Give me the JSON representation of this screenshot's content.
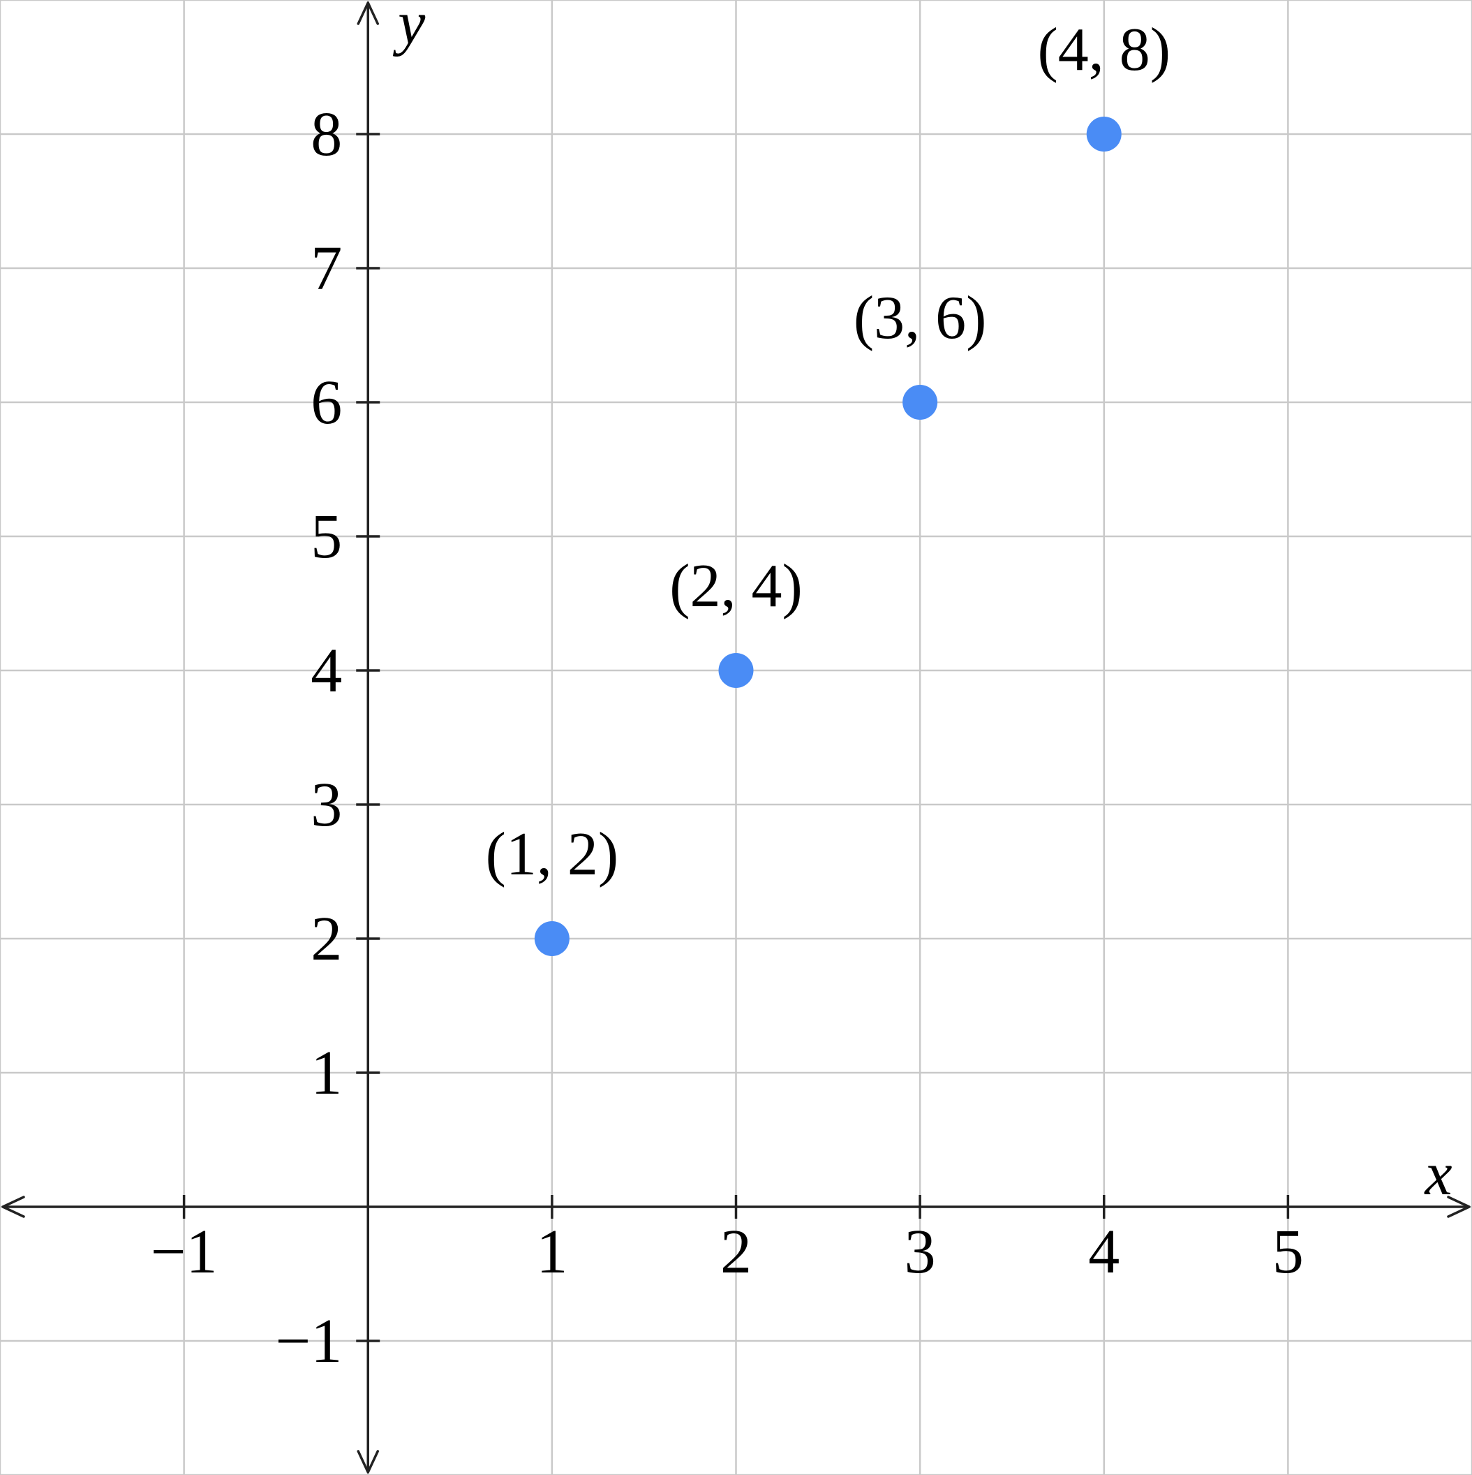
{
  "figure": {
    "background": "#ffffff"
  },
  "chart_data": {
    "type": "scatter",
    "title": "",
    "xlabel": "x",
    "ylabel": "y",
    "xlim": [
      -2,
      6
    ],
    "ylim": [
      -2,
      9
    ],
    "grid": true,
    "legend": null,
    "points": [
      {
        "x": 1,
        "y": 2,
        "label": "(1, 2)"
      },
      {
        "x": 2,
        "y": 4,
        "label": "(2, 4)"
      },
      {
        "x": 3,
        "y": 6,
        "label": "(3, 6)"
      },
      {
        "x": 4,
        "y": 8,
        "label": "(4, 8)"
      }
    ],
    "x_ticks": [
      {
        "value": -1,
        "label": "−1"
      },
      {
        "value": 1,
        "label": "1"
      },
      {
        "value": 2,
        "label": "2"
      },
      {
        "value": 3,
        "label": "3"
      },
      {
        "value": 4,
        "label": "4"
      },
      {
        "value": 5,
        "label": "5"
      }
    ],
    "y_ticks": [
      {
        "value": -1,
        "label": "−1"
      },
      {
        "value": 1,
        "label": "1"
      },
      {
        "value": 2,
        "label": "2"
      },
      {
        "value": 3,
        "label": "3"
      },
      {
        "value": 4,
        "label": "4"
      },
      {
        "value": 5,
        "label": "5"
      },
      {
        "value": 6,
        "label": "6"
      },
      {
        "value": 7,
        "label": "7"
      },
      {
        "value": 8,
        "label": "8"
      }
    ],
    "styles": {
      "point_color": "#4a8cf5",
      "grid_color": "#c9c9c9",
      "axis_color": "#222222",
      "text_color": "#000000"
    }
  }
}
